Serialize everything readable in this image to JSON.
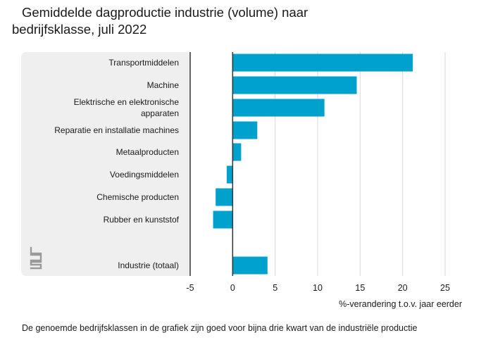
{
  "title_line1": "Gemiddelde dagproductie industrie (volume) naar",
  "title_line2": "bedrijfsklasse, juli 2022",
  "footnote": "De genoemde bedrijfsklassen in de grafiek zijn goed voor bijna drie kwart van de industriële productie",
  "logo_icon": "cbs-logo-icon",
  "colors": {
    "bar": "#00a1cd",
    "label_panel": "#efefef",
    "grid": "#d9d9d9",
    "axis": "#333333"
  },
  "chart_data": {
    "type": "bar",
    "orientation": "horizontal",
    "title": "Gemiddelde dagproductie industrie (volume) naar bedrijfsklasse, juli 2022",
    "xlabel": "%-verandering t.o.v. jaar eerder",
    "ylabel": "",
    "xlim": [
      -5,
      25
    ],
    "x_ticks": [
      -5,
      0,
      5,
      10,
      15,
      20,
      25
    ],
    "grid": "vertical",
    "legend": "none",
    "categories": [
      "Transportmiddelen",
      "Machine",
      "Elektrische en elektronische apparaten",
      "Reparatie en installatie machines",
      "Metaalproducten",
      "Voedingsmiddelen",
      "Chemische producten",
      "Rubber en kunststof",
      "Industrie (totaal)"
    ],
    "label_lines": [
      [
        "Transportmiddelen"
      ],
      [
        "Machine"
      ],
      [
        "Elektrische en elektronische",
        "apparaten"
      ],
      [
        "Reparatie en installatie machines"
      ],
      [
        "Metaalproducten"
      ],
      [
        "Voedingsmiddelen"
      ],
      [
        "Chemische producten"
      ],
      [
        "Rubber en kunststof"
      ],
      [
        "Industrie (totaal)"
      ]
    ],
    "values": [
      21.2,
      14.6,
      10.8,
      2.9,
      1.0,
      -0.7,
      -2.0,
      -2.3,
      4.1
    ]
  }
}
